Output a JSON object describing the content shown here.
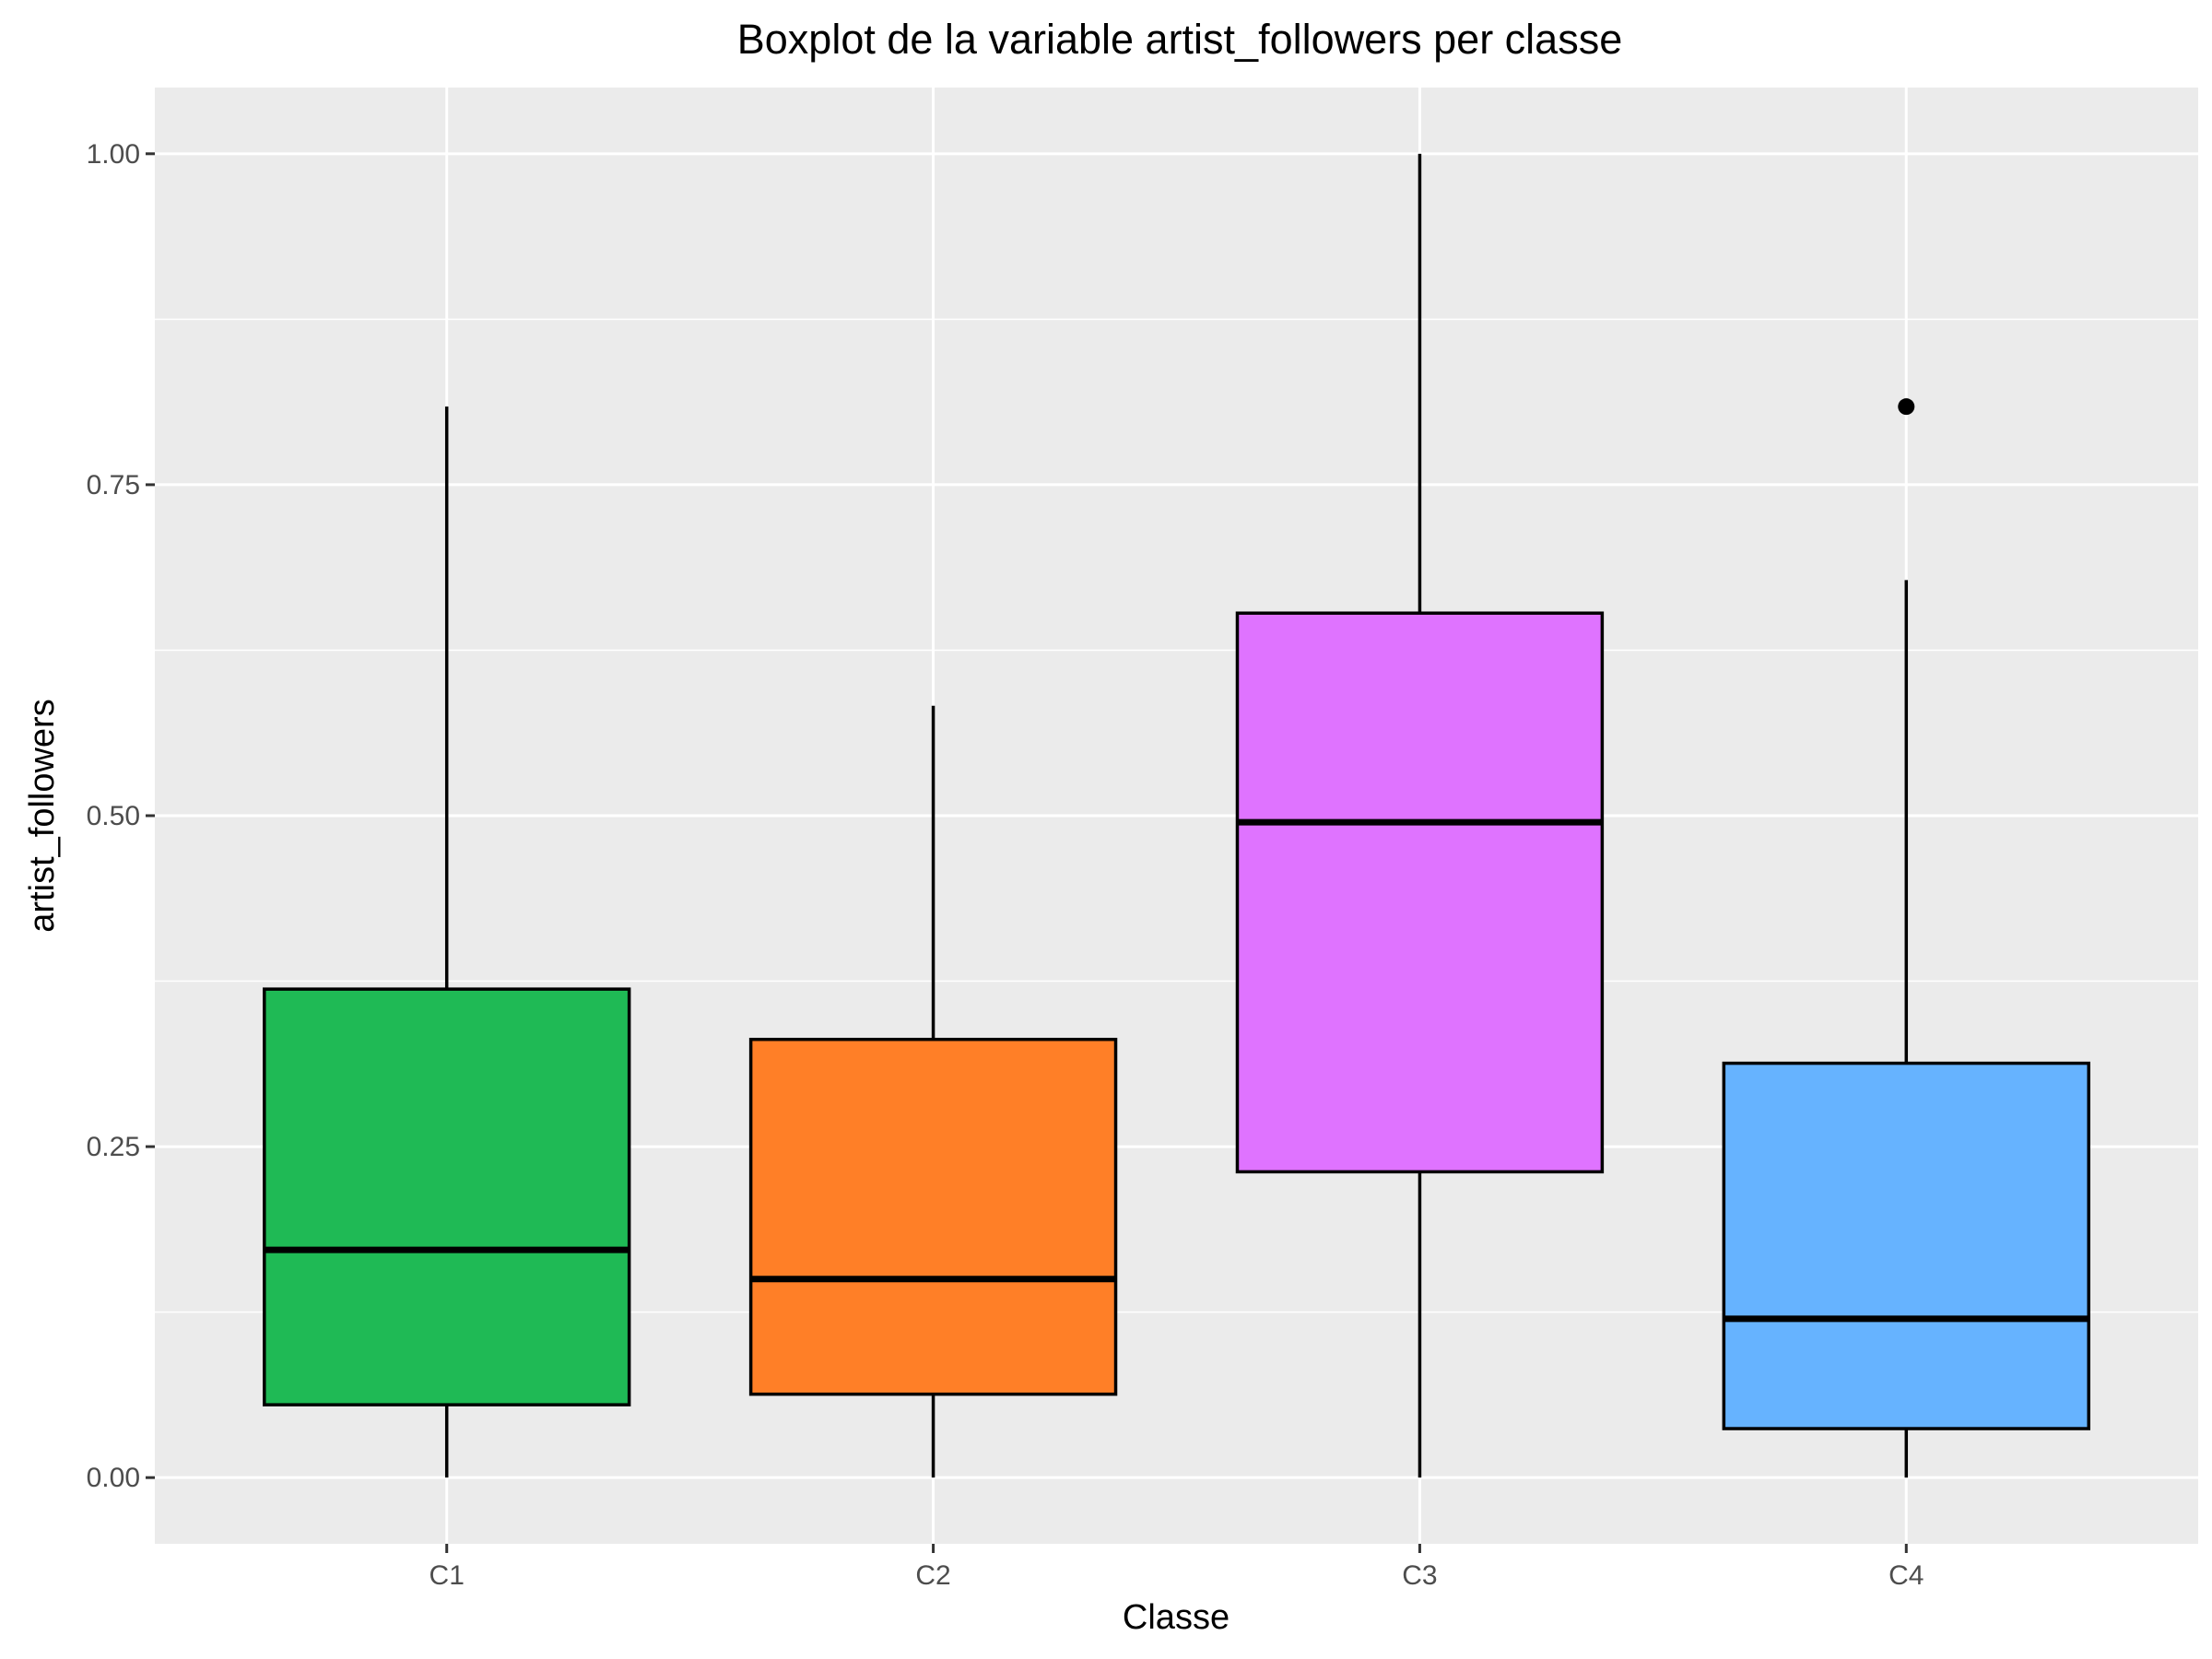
{
  "chart_data": {
    "type": "boxplot",
    "title": "Boxplot de la variable artist_followers per classe",
    "xlabel": "Classe",
    "ylabel": "artist_followers",
    "ylim": [
      -0.05,
      1.05
    ],
    "yticks": [
      0.0,
      0.25,
      0.5,
      0.75,
      1.0
    ],
    "ytick_labels": [
      "0.00",
      "0.25",
      "0.50",
      "0.75",
      "1.00"
    ],
    "grid": true,
    "legend": "none",
    "categories": [
      "C1",
      "C2",
      "C3",
      "C4"
    ],
    "colors": [
      "#1fba55",
      "#ff7f27",
      "#df73ff",
      "#66b3ff"
    ],
    "boxes": [
      {
        "min": 0.0,
        "q1": 0.055,
        "median": 0.172,
        "q3": 0.369,
        "max": 0.809,
        "outliers": []
      },
      {
        "min": 0.0,
        "q1": 0.063,
        "median": 0.15,
        "q3": 0.331,
        "max": 0.583,
        "outliers": []
      },
      {
        "min": 0.0,
        "q1": 0.231,
        "median": 0.495,
        "q3": 0.653,
        "max": 1.0,
        "outliers": []
      },
      {
        "min": 0.0,
        "q1": 0.037,
        "median": 0.12,
        "q3": 0.313,
        "max": 0.678,
        "outliers": [
          0.809
        ]
      }
    ]
  }
}
